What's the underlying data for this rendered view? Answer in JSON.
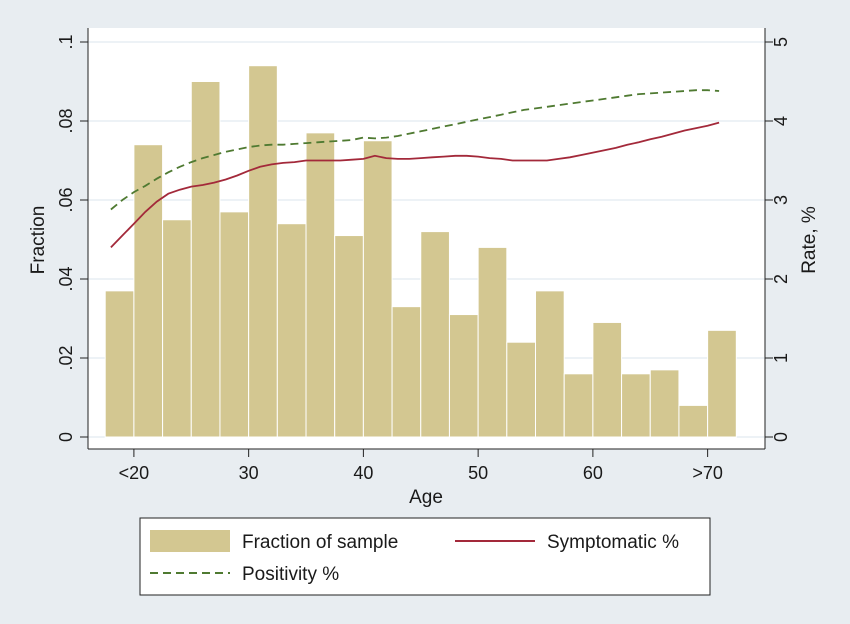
{
  "chart_data": {
    "type": "bar",
    "xlabel": "Age",
    "ylabel_left": "Fraction",
    "ylabel_right": "Rate, %",
    "x_ticks": [
      "<20",
      "30",
      "40",
      "50",
      "60",
      ">70"
    ],
    "x_tick_values": [
      20,
      30,
      40,
      50,
      60,
      70
    ],
    "x_range": [
      16,
      75
    ],
    "ylim_left": [
      0,
      0.1
    ],
    "y_ticks_left": [
      "0",
      ".02",
      ".04",
      ".06",
      ".08",
      ".1"
    ],
    "ylim_right": [
      0,
      5
    ],
    "y_ticks_right": [
      "0",
      "1",
      "2",
      "3",
      "4",
      "5"
    ],
    "grid": "horizontal",
    "legend_position": "bottom",
    "colors": {
      "bar_fill": "#d3c791",
      "bar_edge": "#d3c791",
      "symptomatic": "#a3293a",
      "positivity": "#4f7a31",
      "plot_bg": "#ffffff",
      "outer_bg": "#e8edf1",
      "grid": "#dbe5ee"
    },
    "histogram": {
      "name": "Fraction of sample",
      "bins": [
        {
          "start": 17.5,
          "end": 20.0,
          "value": 0.037
        },
        {
          "start": 20.0,
          "end": 22.5,
          "value": 0.074
        },
        {
          "start": 22.5,
          "end": 25.0,
          "value": 0.055
        },
        {
          "start": 25.0,
          "end": 27.5,
          "value": 0.09
        },
        {
          "start": 27.5,
          "end": 30.0,
          "value": 0.057
        },
        {
          "start": 30.0,
          "end": 32.5,
          "value": 0.094
        },
        {
          "start": 32.5,
          "end": 35.0,
          "value": 0.054
        },
        {
          "start": 35.0,
          "end": 37.5,
          "value": 0.077
        },
        {
          "start": 37.5,
          "end": 40.0,
          "value": 0.051
        },
        {
          "start": 40.0,
          "end": 42.5,
          "value": 0.075
        },
        {
          "start": 42.5,
          "end": 45.0,
          "value": 0.033
        },
        {
          "start": 45.0,
          "end": 47.5,
          "value": 0.052
        },
        {
          "start": 47.5,
          "end": 50.0,
          "value": 0.031
        },
        {
          "start": 50.0,
          "end": 52.5,
          "value": 0.048
        },
        {
          "start": 52.5,
          "end": 55.0,
          "value": 0.024
        },
        {
          "start": 55.0,
          "end": 57.5,
          "value": 0.037
        },
        {
          "start": 57.5,
          "end": 60.0,
          "value": 0.016
        },
        {
          "start": 60.0,
          "end": 62.5,
          "value": 0.029
        },
        {
          "start": 62.5,
          "end": 65.0,
          "value": 0.016
        },
        {
          "start": 65.0,
          "end": 67.5,
          "value": 0.017
        },
        {
          "start": 67.5,
          "end": 70.0,
          "value": 0.008
        },
        {
          "start": 70.0,
          "end": 72.5,
          "value": 0.027
        }
      ]
    },
    "series": [
      {
        "name": "Symptomatic %",
        "axis": "right",
        "style": "solid",
        "x": [
          18,
          19,
          20,
          21,
          22,
          23,
          24,
          25,
          26,
          27,
          28,
          29,
          30,
          31,
          32,
          33,
          34,
          35,
          36,
          37,
          38,
          39,
          40,
          41,
          42,
          43,
          44,
          45,
          46,
          47,
          48,
          49,
          50,
          51,
          52,
          53,
          54,
          55,
          56,
          57,
          58,
          59,
          60,
          61,
          62,
          63,
          64,
          65,
          66,
          67,
          68,
          69,
          70,
          71
        ],
        "y": [
          2.4,
          2.55,
          2.7,
          2.85,
          2.98,
          3.08,
          3.13,
          3.17,
          3.19,
          3.22,
          3.26,
          3.31,
          3.37,
          3.42,
          3.45,
          3.47,
          3.48,
          3.5,
          3.5,
          3.5,
          3.5,
          3.51,
          3.52,
          3.56,
          3.53,
          3.52,
          3.52,
          3.53,
          3.54,
          3.55,
          3.56,
          3.56,
          3.55,
          3.53,
          3.52,
          3.5,
          3.5,
          3.5,
          3.5,
          3.52,
          3.54,
          3.57,
          3.6,
          3.63,
          3.66,
          3.7,
          3.73,
          3.77,
          3.8,
          3.84,
          3.88,
          3.91,
          3.94,
          3.98
        ]
      },
      {
        "name": "Positivity %",
        "axis": "right",
        "style": "dashed",
        "x": [
          18,
          19,
          20,
          21,
          22,
          23,
          24,
          25,
          26,
          27,
          28,
          29,
          30,
          31,
          32,
          33,
          34,
          35,
          36,
          37,
          38,
          39,
          40,
          41,
          42,
          43,
          44,
          45,
          46,
          47,
          48,
          49,
          50,
          51,
          52,
          53,
          54,
          55,
          56,
          57,
          58,
          59,
          60,
          61,
          62,
          63,
          64,
          65,
          66,
          67,
          68,
          69,
          70,
          71
        ],
        "y": [
          2.88,
          3.0,
          3.1,
          3.18,
          3.27,
          3.35,
          3.42,
          3.48,
          3.53,
          3.57,
          3.61,
          3.64,
          3.67,
          3.69,
          3.7,
          3.7,
          3.71,
          3.72,
          3.73,
          3.74,
          3.75,
          3.76,
          3.79,
          3.78,
          3.79,
          3.81,
          3.84,
          3.87,
          3.9,
          3.93,
          3.96,
          3.99,
          4.02,
          4.05,
          4.08,
          4.11,
          4.14,
          4.16,
          4.18,
          4.2,
          4.22,
          4.24,
          4.26,
          4.28,
          4.3,
          4.32,
          4.34,
          4.35,
          4.36,
          4.37,
          4.38,
          4.39,
          4.39,
          4.38
        ]
      }
    ],
    "legend": {
      "items": [
        "Fraction of sample",
        "Symptomatic %",
        "Positivity %"
      ]
    }
  }
}
